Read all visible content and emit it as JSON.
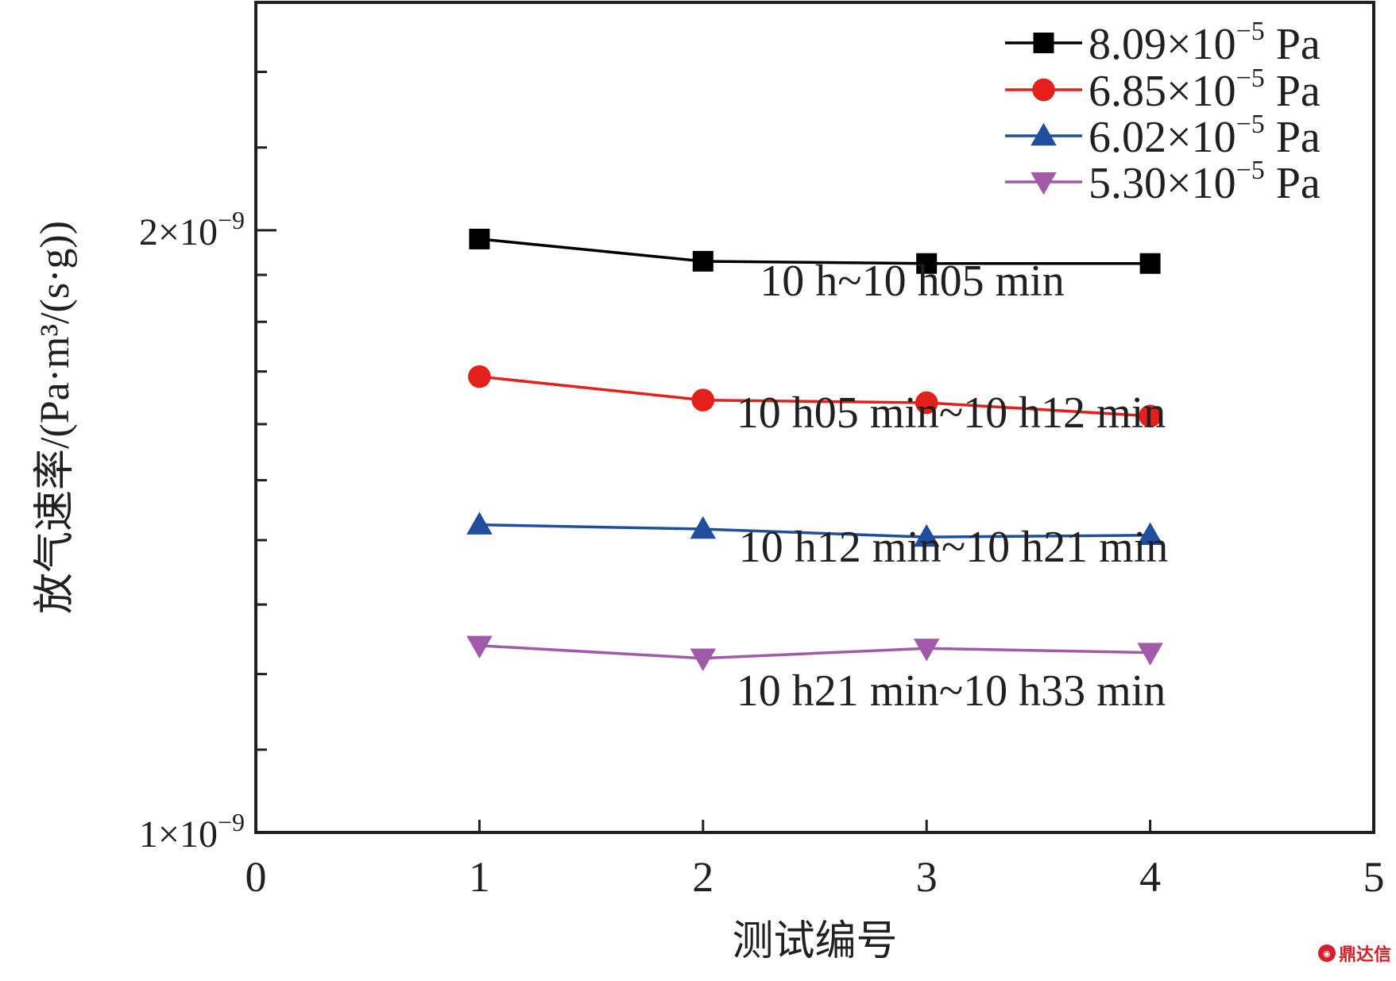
{
  "chart_data": {
    "type": "line",
    "xlabel": "测试编号",
    "ylabel": "放气速率/(Pa·m³/(s·g))",
    "xlim": [
      0,
      5
    ],
    "ylim": [
      1e-09,
      2.6e-09
    ],
    "yscale": "log",
    "x_ticks": [
      "0",
      "1",
      "2",
      "3",
      "4",
      "5"
    ],
    "y_ticks": [
      {
        "value": 1e-09,
        "mantissa": "1",
        "exponent": "−9"
      },
      {
        "value": 2e-09,
        "mantissa": "2",
        "exponent": "−9"
      }
    ],
    "grid": false,
    "legend_position": "top-right",
    "x": [
      1,
      2,
      3,
      4
    ],
    "series": [
      {
        "name": "8.09×10⁻⁵ Pa",
        "legend_value": "8.09×10",
        "legend_exp": "−5",
        "legend_unit": " Pa",
        "marker": "square",
        "color": "#000000",
        "values": [
          1.98e-09,
          1.93e-09,
          1.925e-09,
          1.925e-09
        ],
        "annotation": "10 h~10 h05 min"
      },
      {
        "name": "6.85×10⁻⁵ Pa",
        "legend_value": "6.85×10",
        "legend_exp": "−5",
        "legend_unit": " Pa",
        "marker": "circle",
        "color": "#e3201b",
        "values": [
          1.69e-09,
          1.645e-09,
          1.64e-09,
          1.615e-09
        ],
        "annotation": "10 h05 min~10 h12 min"
      },
      {
        "name": "6.02×10⁻⁵ Pa",
        "legend_value": "6.02×10",
        "legend_exp": "−5",
        "legend_unit": " Pa",
        "marker": "triangle-up",
        "color": "#1f4e9c",
        "values": [
          1.425e-09,
          1.418e-09,
          1.405e-09,
          1.408e-09
        ],
        "annotation": "10 h12 min~10 h21 min"
      },
      {
        "name": "5.30×10⁻⁵ Pa",
        "legend_value": "5.30×10",
        "legend_exp": "−5",
        "legend_unit": " Pa",
        "marker": "triangle-down",
        "color": "#a05aa8",
        "values": [
          1.24e-09,
          1.222e-09,
          1.236e-09,
          1.23e-09
        ],
        "annotation": "10 h21 min~10 h33 min"
      }
    ]
  },
  "watermark": {
    "text": "鼎达信",
    "icon": "logo-icon"
  }
}
